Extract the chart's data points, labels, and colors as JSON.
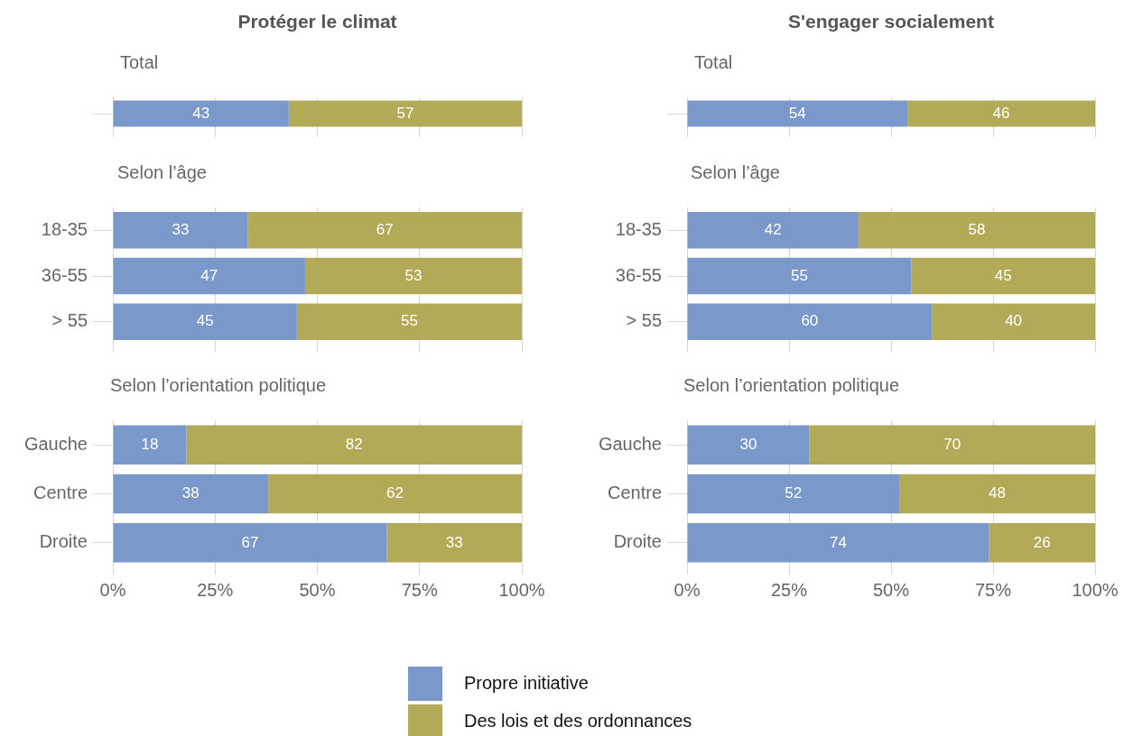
{
  "chart_data": [
    {
      "type": "bar",
      "orientation": "horizontal",
      "stacked": true,
      "title": "Protéger le climat",
      "subtitle": "Total",
      "categories": [
        null
      ],
      "series": [
        {
          "name": "Propre initiative",
          "color": "#7a98c9",
          "values": [
            43
          ]
        },
        {
          "name": "Des lois et des ordonnances",
          "color": "#b3aa58",
          "values": [
            57
          ]
        }
      ],
      "xlim": [
        0,
        100
      ],
      "xticks": [
        {
          "value": 0,
          "label": null
        },
        {
          "value": 25,
          "label": null
        },
        {
          "value": 50,
          "label": null
        },
        {
          "value": 75,
          "label": null
        },
        {
          "value": 100,
          "label": null
        }
      ],
      "tick_labels": "y",
      "grid": true,
      "data_labels": true,
      "legend": "bottom"
    },
    {
      "type": "bar",
      "orientation": "horizontal",
      "stacked": true,
      "title": "S'engager socialement",
      "subtitle": "Total",
      "categories": [
        null
      ],
      "series": [
        {
          "color": "#7a98c9",
          "values": [
            54
          ]
        },
        {
          "color": "#b3aa58",
          "values": [
            46
          ]
        }
      ],
      "xlim": [
        0,
        100
      ],
      "xticks": [
        {
          "value": 0,
          "label": null
        },
        {
          "value": 25,
          "label": null
        },
        {
          "value": 50,
          "label": null
        },
        {
          "value": 75,
          "label": null
        },
        {
          "value": 100,
          "label": null
        }
      ],
      "tick_labels": "y",
      "grid": true,
      "data_labels": true
    },
    {
      "type": "bar",
      "orientation": "horizontal",
      "stacked": true,
      "subtitle": "Selon l’âge",
      "categories": [
        "18-35",
        "36-55",
        "> 55"
      ],
      "series": [
        {
          "color": "#7a98c9",
          "values": [
            33,
            47,
            45
          ]
        },
        {
          "color": "#b3aa58",
          "values": [
            67,
            53,
            55
          ]
        }
      ],
      "xlim": [
        0,
        100
      ],
      "xticks": [
        {
          "value": 0,
          "label": null
        },
        {
          "value": 25,
          "label": null
        },
        {
          "value": 50,
          "label": null
        },
        {
          "value": 75,
          "label": null
        },
        {
          "value": 100,
          "label": null
        }
      ],
      "tick_labels": "y",
      "grid": true,
      "data_labels": true
    },
    {
      "type": "bar",
      "orientation": "horizontal",
      "stacked": true,
      "subtitle": "Selon l’âge",
      "categories": [
        "18-35",
        "36-55",
        "> 55"
      ],
      "series": [
        {
          "color": "#7a98c9",
          "values": [
            42,
            55,
            60
          ]
        },
        {
          "color": "#b3aa58",
          "values": [
            58,
            45,
            40
          ]
        }
      ],
      "xlim": [
        0,
        100
      ],
      "xticks": [
        {
          "value": 0,
          "label": null
        },
        {
          "value": 25,
          "label": null
        },
        {
          "value": 50,
          "label": null
        },
        {
          "value": 75,
          "label": null
        },
        {
          "value": 100,
          "label": null
        }
      ],
      "tick_labels": "y",
      "grid": true,
      "data_labels": true
    },
    {
      "type": "bar",
      "orientation": "horizontal",
      "stacked": true,
      "subtitle": "Selon l’orientation politique",
      "categories": [
        "Gauche",
        "Centre",
        "Droite"
      ],
      "series": [
        {
          "color": "#7a98c9",
          "values": [
            18,
            38,
            67
          ]
        },
        {
          "color": "#b3aa58",
          "values": [
            82,
            62,
            33
          ]
        }
      ],
      "xlim": [
        0,
        100
      ],
      "xticks": [
        {
          "value": 0,
          "label": "0%"
        },
        {
          "value": 25,
          "label": "25%"
        },
        {
          "value": 50,
          "label": "50%"
        },
        {
          "value": 75,
          "label": "75%"
        },
        {
          "value": 100,
          "label": "100%"
        }
      ],
      "grid": true,
      "data_labels": true
    },
    {
      "type": "bar",
      "orientation": "horizontal",
      "stacked": true,
      "subtitle": "Selon l’orientation politique",
      "categories": [
        "Gauche",
        "Centre",
        "Droite"
      ],
      "series": [
        {
          "color": "#7a98c9",
          "values": [
            30,
            52,
            74
          ]
        },
        {
          "color": "#b3aa58",
          "values": [
            70,
            48,
            26
          ]
        }
      ],
      "xlim": [
        0,
        100
      ],
      "xticks": [
        {
          "value": 0,
          "label": "0%"
        },
        {
          "value": 25,
          "label": "25%"
        },
        {
          "value": 50,
          "label": "50%"
        },
        {
          "value": 75,
          "label": "75%"
        },
        {
          "value": 100,
          "label": "100%"
        }
      ],
      "grid": true,
      "data_labels": true
    }
  ]
}
